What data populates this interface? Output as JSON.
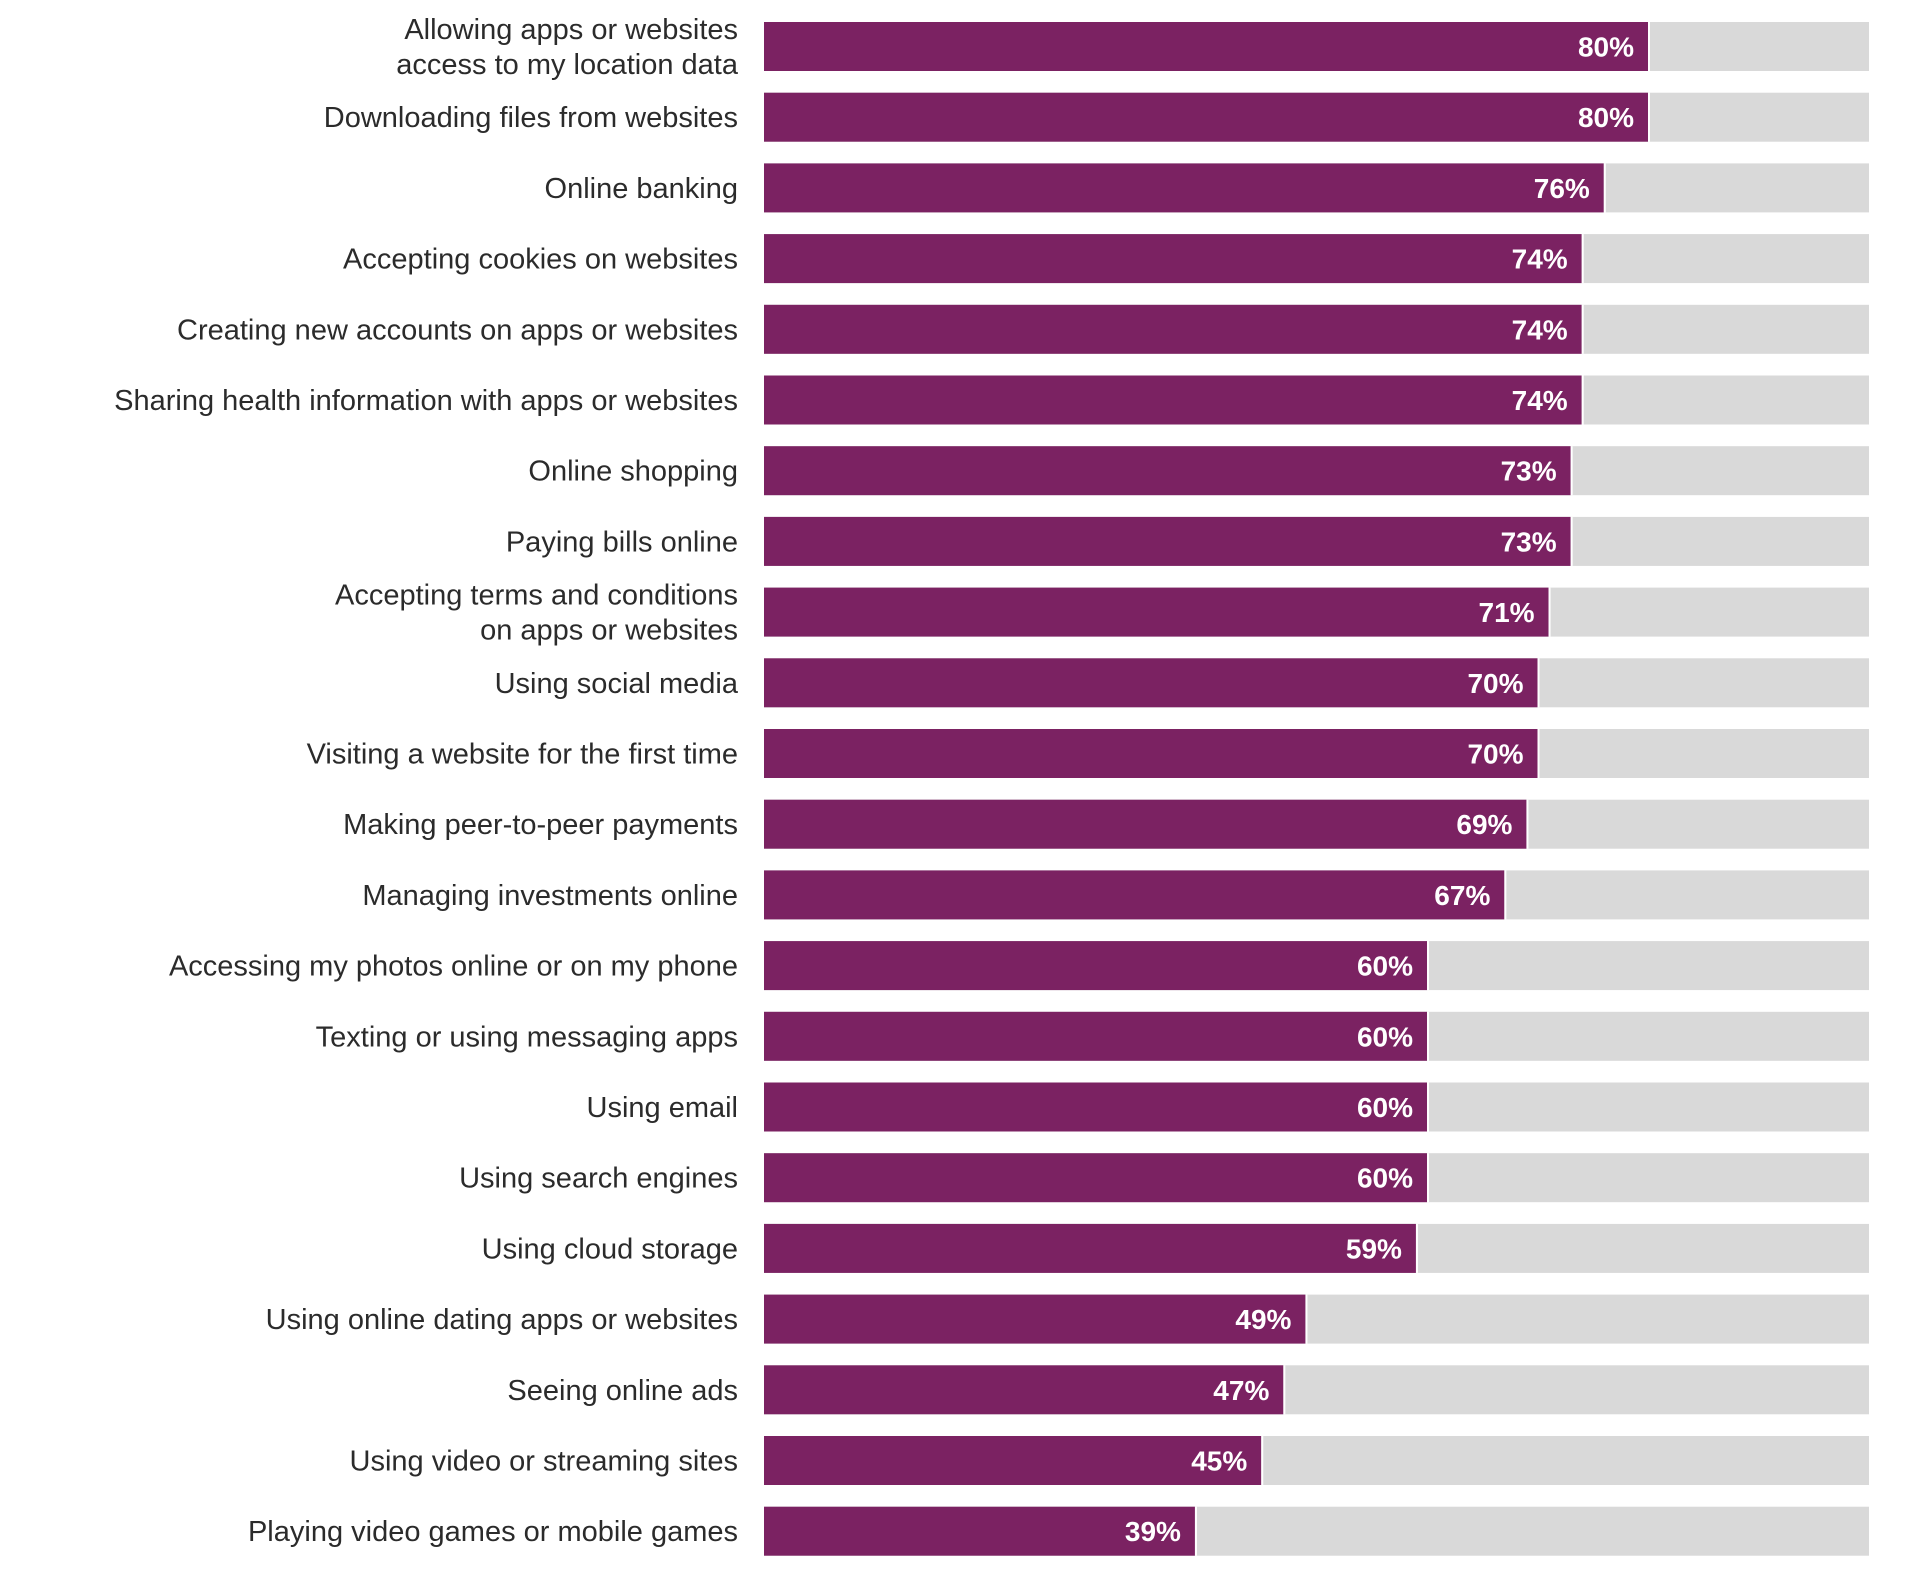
{
  "chart_data": {
    "type": "bar",
    "orientation": "horizontal",
    "title": "",
    "xlabel": "",
    "ylabel": "",
    "xlim": [
      0,
      100
    ],
    "grid": false,
    "legend": "none",
    "value_suffix": "%",
    "colors": {
      "bar": "#7b2262",
      "track": "#d9d9d9",
      "separator": "#ffffff",
      "label_text": "#2b2b2b",
      "value_text": "#ffffff"
    },
    "categories": [
      [
        "Allowing apps or websites",
        "access to my location data"
      ],
      [
        "Downloading files from websites"
      ],
      [
        "Online banking"
      ],
      [
        "Accepting cookies on websites"
      ],
      [
        "Creating new accounts on apps or websites"
      ],
      [
        "Sharing health information with apps or websites"
      ],
      [
        "Online shopping"
      ],
      [
        "Paying bills online"
      ],
      [
        "Accepting terms and conditions",
        "on apps or websites"
      ],
      [
        "Using social media"
      ],
      [
        "Visiting a website for the first time"
      ],
      [
        "Making peer-to-peer payments"
      ],
      [
        "Managing investments online"
      ],
      [
        "Accessing my photos online or on my phone"
      ],
      [
        "Texting or using messaging apps"
      ],
      [
        "Using email"
      ],
      [
        "Using search engines"
      ],
      [
        "Using cloud storage"
      ],
      [
        "Using online dating apps or websites"
      ],
      [
        "Seeing online ads"
      ],
      [
        "Using video or streaming sites"
      ],
      [
        "Playing video games or mobile games"
      ]
    ],
    "values": [
      80,
      80,
      76,
      74,
      74,
      74,
      73,
      73,
      71,
      70,
      70,
      69,
      67,
      60,
      60,
      60,
      60,
      59,
      49,
      47,
      45,
      39
    ]
  }
}
